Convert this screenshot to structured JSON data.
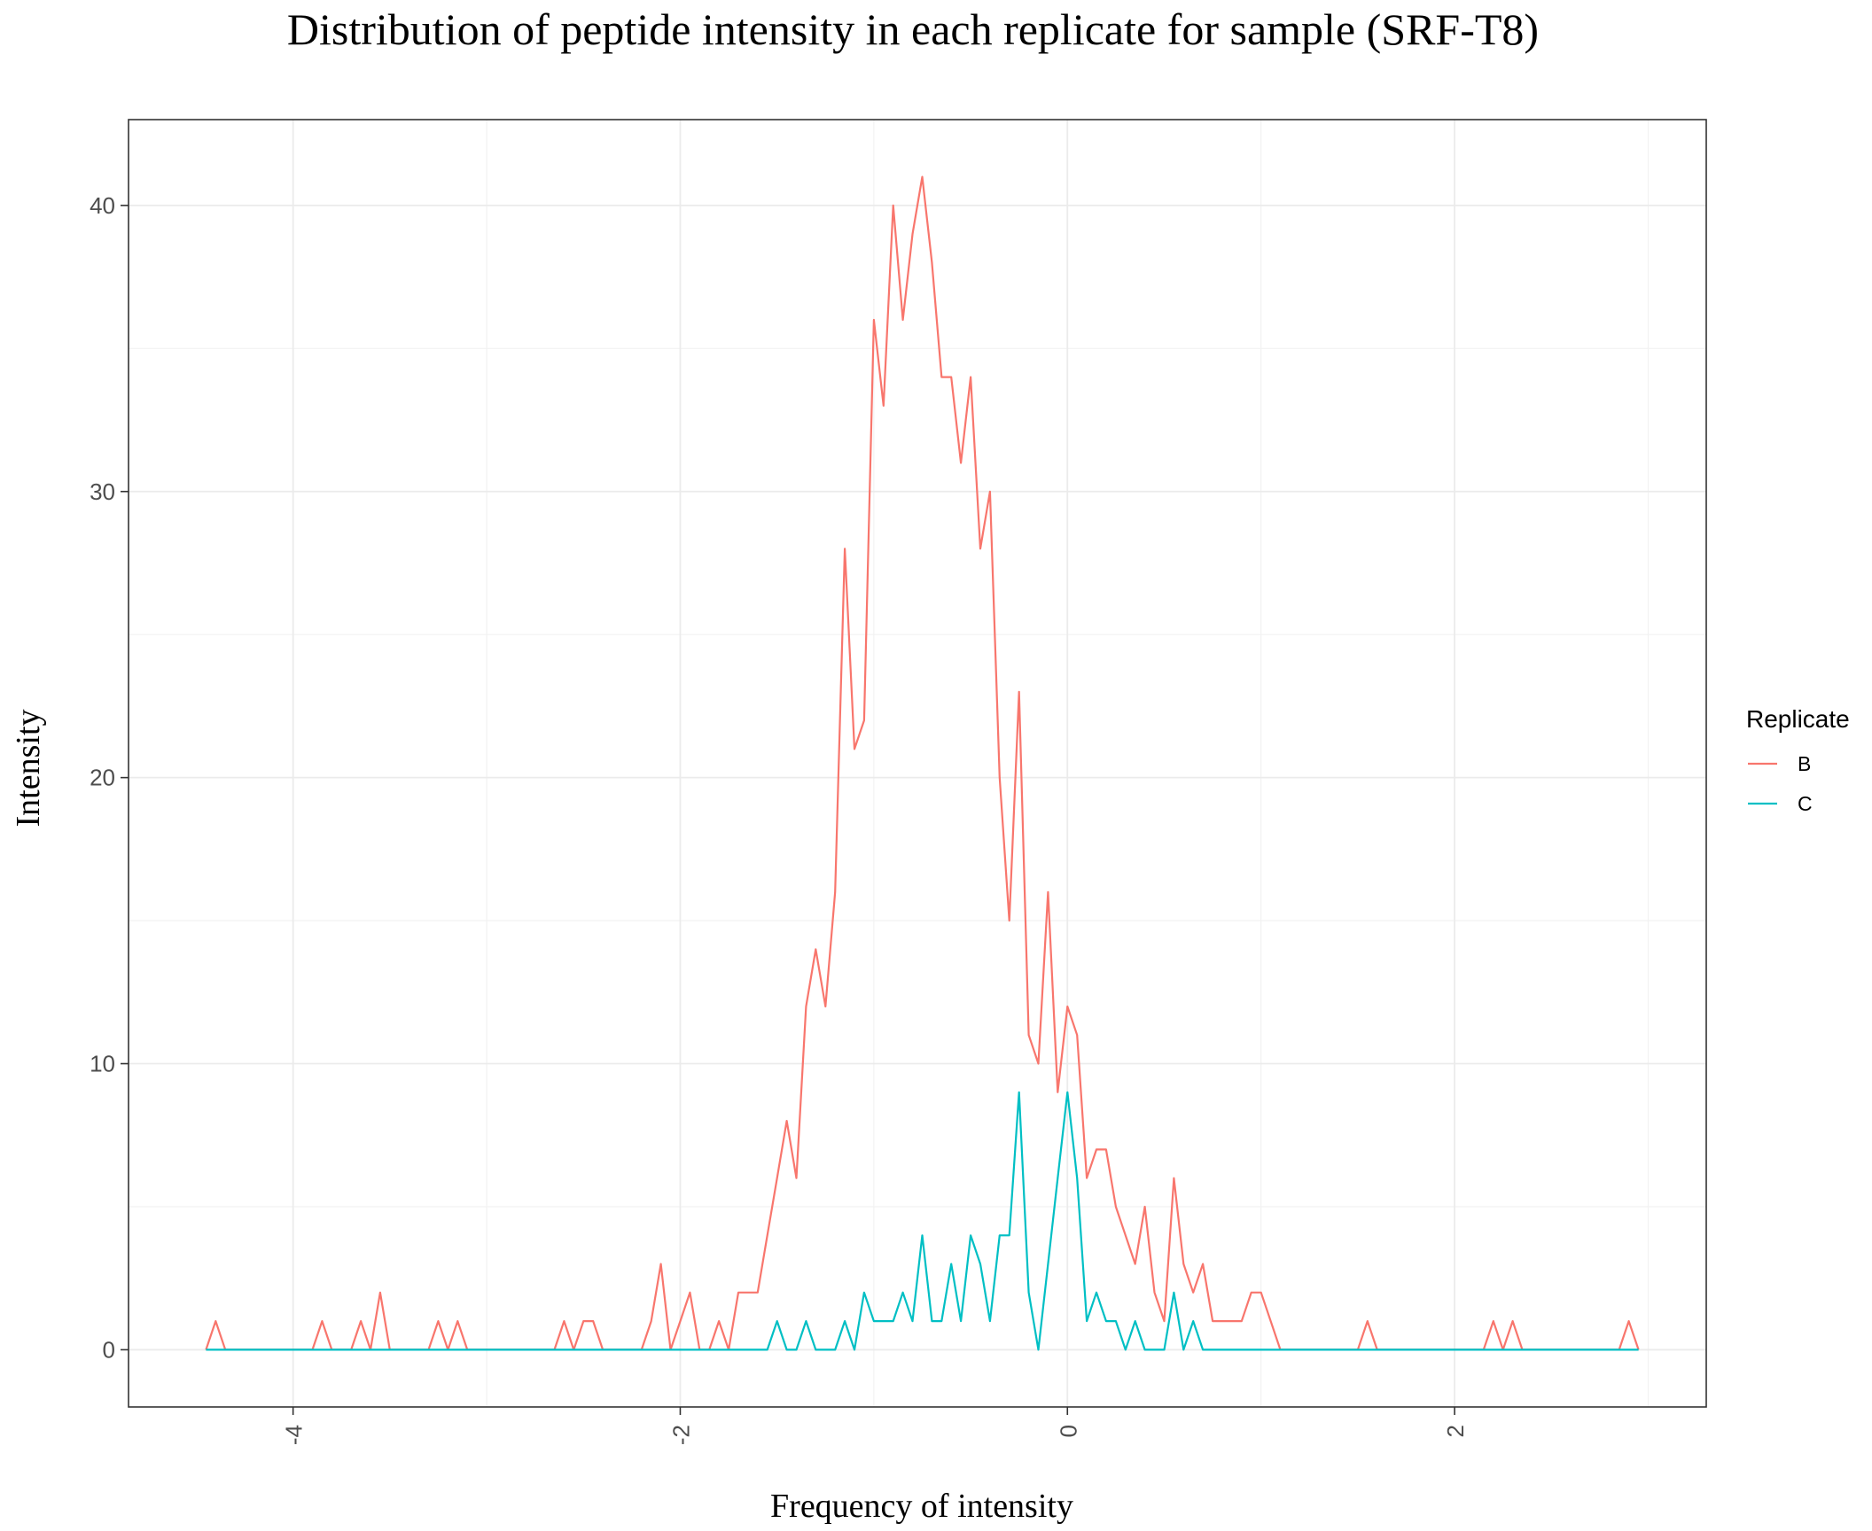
{
  "chart_data": {
    "type": "line",
    "title": "Distribution of peptide intensity in each replicate for sample (SRF-T8)",
    "xlabel": "Frequency of intensity",
    "ylabel": "Intensity",
    "xlim": [
      -4.85,
      3.3
    ],
    "ylim": [
      -2,
      43
    ],
    "x_ticks": [
      -4,
      -2,
      0,
      2
    ],
    "x_tick_labels": [
      "-4",
      "-2",
      "0",
      "2"
    ],
    "y_ticks": [
      0,
      10,
      20,
      30,
      40
    ],
    "y_tick_labels": [
      "0",
      "10",
      "20",
      "30",
      "40"
    ],
    "grid": true,
    "legend": {
      "title": "Replicate",
      "position": "right"
    },
    "series": [
      {
        "name": "B",
        "color": "#F8766D",
        "points": [
          [
            -4.45,
            0
          ],
          [
            -4.4,
            1
          ],
          [
            -4.35,
            0
          ],
          [
            -3.9,
            0
          ],
          [
            -3.85,
            1
          ],
          [
            -3.8,
            0
          ],
          [
            -3.7,
            0
          ],
          [
            -3.65,
            1
          ],
          [
            -3.6,
            0
          ],
          [
            -3.55,
            2
          ],
          [
            -3.5,
            0
          ],
          [
            -3.3,
            0
          ],
          [
            -3.25,
            1
          ],
          [
            -3.2,
            0
          ],
          [
            -3.15,
            1
          ],
          [
            -3.1,
            0
          ],
          [
            -2.65,
            0
          ],
          [
            -2.6,
            1
          ],
          [
            -2.55,
            0
          ],
          [
            -2.5,
            1
          ],
          [
            -2.45,
            1
          ],
          [
            -2.4,
            0
          ],
          [
            -2.2,
            0
          ],
          [
            -2.15,
            1
          ],
          [
            -2.1,
            3
          ],
          [
            -2.05,
            0
          ],
          [
            -2.0,
            1
          ],
          [
            -1.95,
            2
          ],
          [
            -1.9,
            0
          ],
          [
            -1.85,
            0
          ],
          [
            -1.8,
            1
          ],
          [
            -1.75,
            0
          ],
          [
            -1.7,
            2
          ],
          [
            -1.6,
            2
          ],
          [
            -1.55,
            4
          ],
          [
            -1.5,
            6
          ],
          [
            -1.45,
            8
          ],
          [
            -1.4,
            6
          ],
          [
            -1.35,
            12
          ],
          [
            -1.3,
            14
          ],
          [
            -1.25,
            12
          ],
          [
            -1.2,
            16
          ],
          [
            -1.15,
            28
          ],
          [
            -1.1,
            21
          ],
          [
            -1.05,
            22
          ],
          [
            -1.0,
            36
          ],
          [
            -0.95,
            33
          ],
          [
            -0.9,
            40
          ],
          [
            -0.85,
            36
          ],
          [
            -0.8,
            39
          ],
          [
            -0.75,
            41
          ],
          [
            -0.7,
            38
          ],
          [
            -0.65,
            34
          ],
          [
            -0.6,
            34
          ],
          [
            -0.55,
            31
          ],
          [
            -0.5,
            34
          ],
          [
            -0.45,
            28
          ],
          [
            -0.4,
            30
          ],
          [
            -0.35,
            20
          ],
          [
            -0.3,
            15
          ],
          [
            -0.25,
            23
          ],
          [
            -0.2,
            11
          ],
          [
            -0.15,
            10
          ],
          [
            -0.1,
            16
          ],
          [
            -0.05,
            9
          ],
          [
            0.0,
            12
          ],
          [
            0.05,
            11
          ],
          [
            0.1,
            6
          ],
          [
            0.15,
            7
          ],
          [
            0.2,
            7
          ],
          [
            0.25,
            5
          ],
          [
            0.3,
            4
          ],
          [
            0.35,
            3
          ],
          [
            0.4,
            5
          ],
          [
            0.45,
            2
          ],
          [
            0.5,
            1
          ],
          [
            0.55,
            6
          ],
          [
            0.6,
            3
          ],
          [
            0.65,
            2
          ],
          [
            0.7,
            3
          ],
          [
            0.75,
            1
          ],
          [
            0.9,
            1
          ],
          [
            0.95,
            2
          ],
          [
            1.0,
            2
          ],
          [
            1.1,
            0
          ],
          [
            1.5,
            0
          ],
          [
            1.55,
            1
          ],
          [
            1.6,
            0
          ],
          [
            2.15,
            0
          ],
          [
            2.2,
            1
          ],
          [
            2.25,
            0
          ],
          [
            2.3,
            1
          ],
          [
            2.35,
            0
          ],
          [
            2.85,
            0
          ],
          [
            2.9,
            1
          ],
          [
            2.95,
            0
          ]
        ]
      },
      {
        "name": "C",
        "color": "#00BFC4",
        "points": [
          [
            -4.45,
            0
          ],
          [
            -1.55,
            0
          ],
          [
            -1.5,
            1
          ],
          [
            -1.45,
            0
          ],
          [
            -1.4,
            0
          ],
          [
            -1.35,
            1
          ],
          [
            -1.3,
            0
          ],
          [
            -1.2,
            0
          ],
          [
            -1.15,
            1
          ],
          [
            -1.1,
            0
          ],
          [
            -1.05,
            2
          ],
          [
            -1.0,
            1
          ],
          [
            -0.9,
            1
          ],
          [
            -0.85,
            2
          ],
          [
            -0.8,
            1
          ],
          [
            -0.75,
            4
          ],
          [
            -0.7,
            1
          ],
          [
            -0.65,
            1
          ],
          [
            -0.6,
            3
          ],
          [
            -0.55,
            1
          ],
          [
            -0.5,
            4
          ],
          [
            -0.45,
            3
          ],
          [
            -0.4,
            1
          ],
          [
            -0.35,
            4
          ],
          [
            -0.3,
            4
          ],
          [
            -0.25,
            9
          ],
          [
            -0.2,
            2
          ],
          [
            -0.15,
            0
          ],
          [
            -0.1,
            3
          ],
          [
            -0.05,
            6
          ],
          [
            0.0,
            9
          ],
          [
            0.05,
            6
          ],
          [
            0.1,
            1
          ],
          [
            0.15,
            2
          ],
          [
            0.2,
            1
          ],
          [
            0.25,
            1
          ],
          [
            0.3,
            0
          ],
          [
            0.35,
            1
          ],
          [
            0.4,
            0
          ],
          [
            0.5,
            0
          ],
          [
            0.55,
            2
          ],
          [
            0.6,
            0
          ],
          [
            0.65,
            1
          ],
          [
            0.7,
            0
          ],
          [
            2.95,
            0
          ]
        ]
      }
    ]
  }
}
